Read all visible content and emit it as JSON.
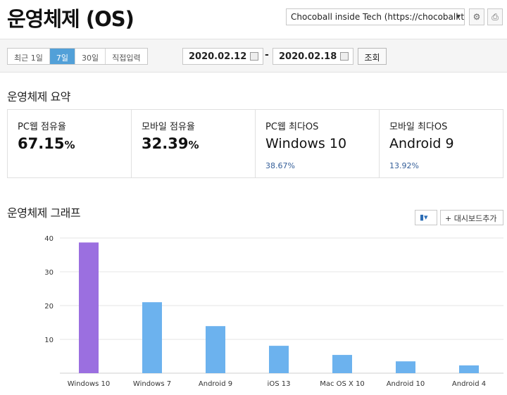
{
  "header": {
    "title": "운영체제 (OS)",
    "site_select": "Chocoball inside Tech (https://chocoball.t···",
    "settings_icon": "gear-icon",
    "print_icon": "print-icon"
  },
  "toolbar": {
    "ranges": [
      "최근 1일",
      "7일",
      "30일",
      "직접입력"
    ],
    "active_range": "7일",
    "start_date": "2020.02.12",
    "end_date": "2020.02.18",
    "separator": "-",
    "lookup_label": "조회"
  },
  "summary": {
    "title": "운영체제 요약",
    "cards": [
      {
        "label": "PC웹 점유율",
        "value": "67.15",
        "unit": "%"
      },
      {
        "label": "모바일 점유율",
        "value": "32.39",
        "unit": "%"
      },
      {
        "label": "PC웹 최다OS",
        "os": "Windows 10",
        "pct": "38.67%"
      },
      {
        "label": "모바일 최다OS",
        "os": "Android 9",
        "pct": "13.92%"
      }
    ]
  },
  "graph": {
    "title": "운영체제 그래프",
    "chart_type_icon": "bar-chart-icon",
    "add_dashboard_label": "+ 대시보드추가"
  },
  "colors": {
    "highlight_bar": "#9b6fe0",
    "bar": "#6cb2ee",
    "active_tab": "#52a0d8",
    "pct_text": "#355f99"
  },
  "chart_data": {
    "type": "bar",
    "categories": [
      "Windows 10",
      "Windows 7",
      "Android 9",
      "iOS 13",
      "Mac OS X 10",
      "Android 10",
      "Android 4"
    ],
    "values": [
      38.67,
      21.0,
      13.92,
      8.1,
      5.4,
      3.5,
      2.3
    ],
    "yticks": [
      10,
      20,
      30,
      40
    ],
    "ylim": [
      0,
      40
    ],
    "highlight_index": 0,
    "grid": true
  }
}
